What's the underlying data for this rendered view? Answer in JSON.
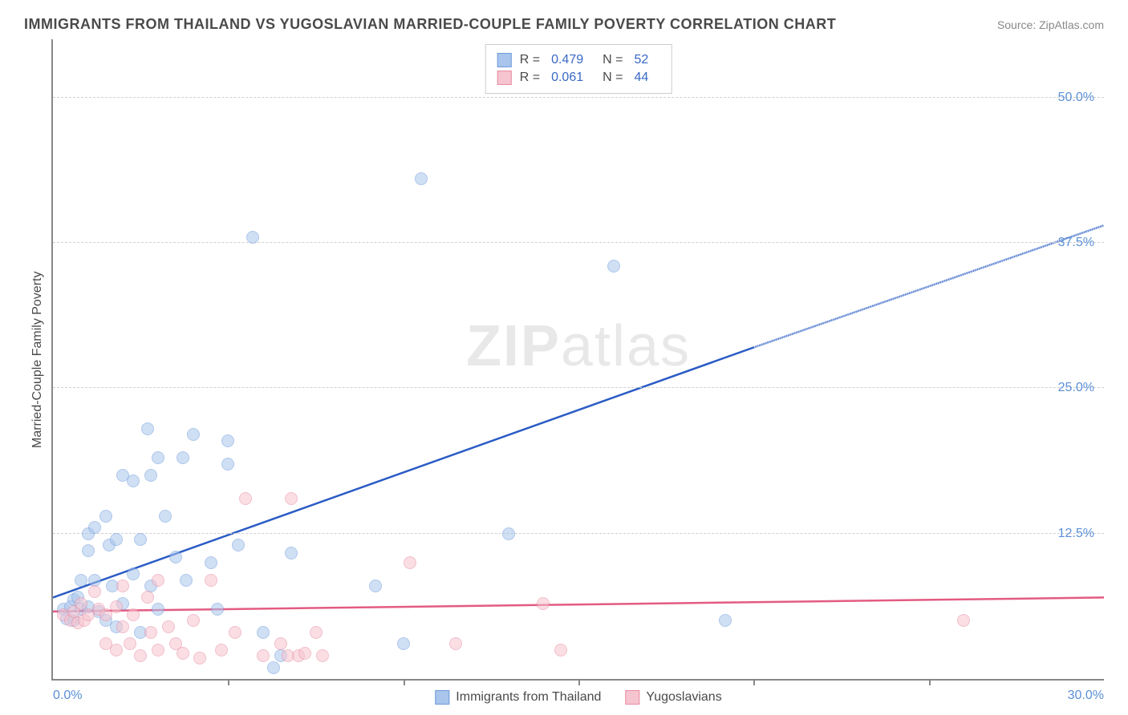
{
  "title": "IMMIGRANTS FROM THAILAND VS YUGOSLAVIAN MARRIED-COUPLE FAMILY POVERTY CORRELATION CHART",
  "source": "Source: ZipAtlas.com",
  "y_axis_label": "Married-Couple Family Poverty",
  "watermark": "ZIPatlas",
  "chart": {
    "type": "scatter",
    "xlim": [
      0,
      30
    ],
    "ylim": [
      0,
      55
    ],
    "x_min_label": "0.0%",
    "x_max_label": "30.0%",
    "y_ticks": [
      12.5,
      25.0,
      37.5,
      50.0
    ],
    "y_tick_labels": [
      "12.5%",
      "25.0%",
      "37.5%",
      "50.0%"
    ],
    "x_ticks": [
      5,
      10,
      15,
      20,
      25
    ],
    "grid_color": "#d0d0d0",
    "axis_color": "#888888",
    "tick_label_color": "#5b8fd6",
    "background_color": "#ffffff",
    "marker_radius": 8,
    "marker_opacity": 0.55,
    "series": [
      {
        "name": "Immigrants from Thailand",
        "fill_color": "#a9c5ec",
        "stroke_color": "#6f9bdc",
        "trend_color": "#2a5bc4",
        "R": 0.479,
        "N": 52,
        "trend": {
          "x1": 0,
          "y1": 7.0,
          "x2": 20.0,
          "y2": 28.5,
          "dash_x2": 30.0,
          "dash_y2": 39.0
        },
        "points": [
          [
            0.3,
            6.0
          ],
          [
            0.4,
            5.2
          ],
          [
            0.5,
            6.2
          ],
          [
            0.6,
            6.8
          ],
          [
            0.6,
            5.0
          ],
          [
            0.7,
            7.0
          ],
          [
            0.8,
            6.0
          ],
          [
            0.8,
            8.5
          ],
          [
            1.0,
            6.2
          ],
          [
            1.0,
            12.5
          ],
          [
            1.0,
            11.0
          ],
          [
            1.2,
            13.0
          ],
          [
            1.2,
            8.5
          ],
          [
            1.3,
            5.8
          ],
          [
            1.5,
            5.0
          ],
          [
            1.5,
            14.0
          ],
          [
            1.6,
            11.5
          ],
          [
            1.7,
            8.0
          ],
          [
            1.8,
            12.0
          ],
          [
            1.8,
            4.5
          ],
          [
            2.0,
            17.5
          ],
          [
            2.0,
            6.5
          ],
          [
            2.3,
            17.0
          ],
          [
            2.3,
            9.0
          ],
          [
            2.5,
            12.0
          ],
          [
            2.5,
            4.0
          ],
          [
            2.7,
            21.5
          ],
          [
            2.8,
            17.5
          ],
          [
            2.8,
            8.0
          ],
          [
            3.0,
            19.0
          ],
          [
            3.0,
            6.0
          ],
          [
            3.2,
            14.0
          ],
          [
            3.5,
            10.5
          ],
          [
            3.7,
            19.0
          ],
          [
            3.8,
            8.5
          ],
          [
            4.0,
            21.0
          ],
          [
            4.5,
            10.0
          ],
          [
            4.7,
            6.0
          ],
          [
            5.0,
            20.5
          ],
          [
            5.0,
            18.5
          ],
          [
            5.3,
            11.5
          ],
          [
            5.7,
            38.0
          ],
          [
            6.0,
            4.0
          ],
          [
            6.3,
            1.0
          ],
          [
            6.5,
            2.0
          ],
          [
            6.8,
            10.8
          ],
          [
            9.2,
            8.0
          ],
          [
            10.5,
            43.0
          ],
          [
            13.0,
            12.5
          ],
          [
            16.0,
            35.5
          ],
          [
            19.2,
            5.0
          ],
          [
            10.0,
            3.0
          ]
        ]
      },
      {
        "name": "Yugoslavians",
        "fill_color": "#f6c4cf",
        "stroke_color": "#e88ba2",
        "trend_color": "#e35b82",
        "R": 0.061,
        "N": 44,
        "trend": {
          "x1": 0,
          "y1": 5.8,
          "x2": 30.0,
          "y2": 7.0
        },
        "points": [
          [
            0.3,
            5.5
          ],
          [
            0.5,
            5.0
          ],
          [
            0.6,
            5.8
          ],
          [
            0.7,
            4.8
          ],
          [
            0.8,
            6.5
          ],
          [
            0.9,
            5.0
          ],
          [
            1.0,
            5.5
          ],
          [
            1.2,
            7.5
          ],
          [
            1.3,
            6.0
          ],
          [
            1.5,
            3.0
          ],
          [
            1.5,
            5.5
          ],
          [
            1.8,
            6.2
          ],
          [
            1.8,
            2.5
          ],
          [
            2.0,
            8.0
          ],
          [
            2.0,
            4.5
          ],
          [
            2.2,
            3.0
          ],
          [
            2.3,
            5.5
          ],
          [
            2.5,
            2.0
          ],
          [
            2.7,
            7.0
          ],
          [
            2.8,
            4.0
          ],
          [
            3.0,
            8.5
          ],
          [
            3.0,
            2.5
          ],
          [
            3.3,
            4.5
          ],
          [
            3.5,
            3.0
          ],
          [
            3.7,
            2.2
          ],
          [
            4.0,
            5.0
          ],
          [
            4.2,
            1.8
          ],
          [
            4.5,
            8.5
          ],
          [
            4.8,
            2.5
          ],
          [
            5.2,
            4.0
          ],
          [
            5.5,
            15.5
          ],
          [
            6.0,
            2.0
          ],
          [
            6.5,
            3.0
          ],
          [
            6.7,
            2.0
          ],
          [
            6.8,
            15.5
          ],
          [
            7.0,
            2.0
          ],
          [
            7.2,
            2.2
          ],
          [
            7.5,
            4.0
          ],
          [
            7.7,
            2.0
          ],
          [
            10.2,
            10.0
          ],
          [
            11.5,
            3.0
          ],
          [
            14.0,
            6.5
          ],
          [
            14.5,
            2.5
          ],
          [
            26.0,
            5.0
          ]
        ]
      }
    ]
  },
  "stats_legend": {
    "rows": [
      {
        "swatch_fill": "#a9c5ec",
        "swatch_border": "#6f9bdc",
        "r_label": "R =",
        "r_value": "0.479",
        "n_label": "N =",
        "n_value": "52"
      },
      {
        "swatch_fill": "#f6c4cf",
        "swatch_border": "#e88ba2",
        "r_label": "R =",
        "r_value": "0.061",
        "n_label": "N =",
        "n_value": "44"
      }
    ]
  },
  "bottom_legend": {
    "items": [
      {
        "swatch_fill": "#a9c5ec",
        "swatch_border": "#6f9bdc",
        "label": "Immigrants from Thailand"
      },
      {
        "swatch_fill": "#f6c4cf",
        "swatch_border": "#e88ba2",
        "label": "Yugoslavians"
      }
    ]
  }
}
